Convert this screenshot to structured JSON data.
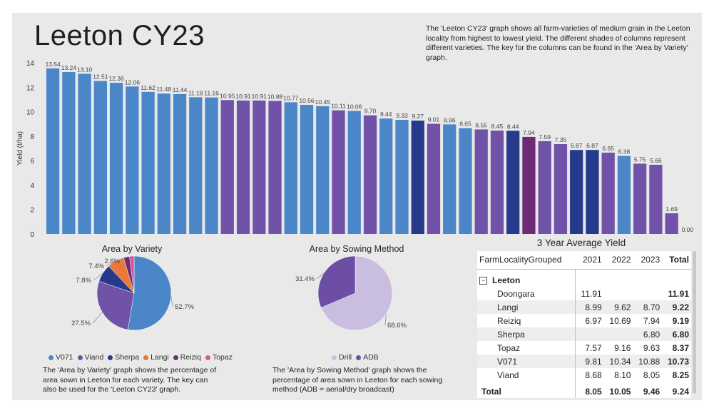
{
  "page_title": "Leeton CY23",
  "intro_text": "The 'Leeton CY23' graph shows all farm-varieties of medium grain in the Leeton locality from highest to lowest yield. The different shades of columns represent different varieties. The key for the columns can be found in the 'Area by Variety' graph.",
  "colors": {
    "V071": "#4a86c8",
    "Viand": "#7052a8",
    "Sherpa": "#263a8c",
    "Langi": "#e8793a",
    "Reiziq": "#6c2b74",
    "Topaz": "#d9559a",
    "Drill": "#c9bde0",
    "ADB": "#6c4fa5"
  },
  "chart_data": [
    {
      "type": "bar",
      "title": "Leeton CY23",
      "xlabel": "",
      "ylabel": "Yield (t/ha)",
      "ylim": [
        0,
        14
      ],
      "yticks": [
        0,
        2,
        4,
        6,
        8,
        10,
        12,
        14
      ],
      "values": [
        13.54,
        13.24,
        13.1,
        12.51,
        12.36,
        12.06,
        11.62,
        11.48,
        11.44,
        11.18,
        11.16,
        10.95,
        10.91,
        10.91,
        10.88,
        10.77,
        10.56,
        10.45,
        10.11,
        10.06,
        9.7,
        9.44,
        9.33,
        9.27,
        9.01,
        8.96,
        8.65,
        8.55,
        8.45,
        8.44,
        7.94,
        7.59,
        7.35,
        6.87,
        6.87,
        6.65,
        6.38,
        5.75,
        5.66,
        1.69,
        0.0
      ],
      "labels": [
        "13.54",
        "13.24",
        "13.10",
        "12.51",
        "12.36",
        "12.06",
        "11.62",
        "11.48",
        "11.44",
        "11.18",
        "11.16",
        "10.95",
        "10.91",
        "10.91",
        "10.88",
        "10.77",
        "10.56",
        "10.45",
        "10.11",
        "10.06",
        "9.70",
        "9.44",
        "9.33",
        "9.27",
        "9.01",
        "8.96",
        "8.65",
        "8.55",
        "8.45",
        "8.44",
        "7.94",
        "7.59",
        "7.35",
        "6.87",
        "6.87",
        "6.65",
        "6.38",
        "5.75",
        "5.66",
        "1.69",
        "0.00"
      ],
      "varieties": [
        "V071",
        "V071",
        "V071",
        "V071",
        "V071",
        "V071",
        "V071",
        "V071",
        "V071",
        "V071",
        "V071",
        "Viand",
        "Viand",
        "Viand",
        "Viand",
        "V071",
        "V071",
        "V071",
        "Viand",
        "V071",
        "Viand",
        "V071",
        "V071",
        "Sherpa",
        "Viand",
        "V071",
        "V071",
        "Viand",
        "Viand",
        "Sherpa",
        "Reiziq",
        "Viand",
        "Viand",
        "Sherpa",
        "Sherpa",
        "Viand",
        "V071",
        "Viand",
        "Viand",
        "Viand",
        "Viand"
      ]
    },
    {
      "type": "pie",
      "title": "Area by Variety",
      "categories": [
        "V071",
        "Viand",
        "Sherpa",
        "Langi",
        "Reiziq",
        "Topaz"
      ],
      "values": [
        52.7,
        27.5,
        7.8,
        7.4,
        2.6,
        2.0
      ],
      "labels": [
        "52.7%",
        "27.5%",
        "7.8%",
        "7.4%",
        "2.6%",
        ""
      ],
      "legend": [
        "V071",
        "Viand",
        "Sherpa",
        "Langi",
        "Reiziq",
        "Topaz"
      ]
    },
    {
      "type": "pie",
      "title": "Area by Sowing Method",
      "categories": [
        "Drill",
        "ADB"
      ],
      "values": [
        68.6,
        31.4
      ],
      "labels": [
        "68.6%",
        "31.4%"
      ],
      "legend": [
        "Drill",
        "ADB"
      ]
    }
  ],
  "captions": {
    "variety": "The 'Area by Variety' graph shows the percentage of area sown in Leeton for each variety. The key can also be used for the 'Leeton CY23' graph.",
    "sowing": "The 'Area by Sowing Method' graph shows the percentage of area sown in Leeton for each sowing method (ADB = aerial/dry broadcast)"
  },
  "table": {
    "title": "3 Year Average Yield",
    "headers": [
      "FarmLocalityGrouped",
      "2021",
      "2022",
      "2023",
      "Total"
    ],
    "group": "Leeton",
    "collapse_symbol": "−",
    "rows": [
      {
        "name": "Doongara",
        "y2021": "11.91",
        "y2022": "",
        "y2023": "",
        "total": "11.91"
      },
      {
        "name": "Langi",
        "y2021": "8.99",
        "y2022": "9.62",
        "y2023": "8.70",
        "total": "9.22"
      },
      {
        "name": "Reiziq",
        "y2021": "6.97",
        "y2022": "10.69",
        "y2023": "7.94",
        "total": "9.19"
      },
      {
        "name": "Sherpa",
        "y2021": "",
        "y2022": "",
        "y2023": "6.80",
        "total": "6.80"
      },
      {
        "name": "Topaz",
        "y2021": "7.57",
        "y2022": "9.16",
        "y2023": "9.63",
        "total": "8.37"
      },
      {
        "name": "V071",
        "y2021": "9.81",
        "y2022": "10.34",
        "y2023": "10.88",
        "total": "10.73"
      },
      {
        "name": "Viand",
        "y2021": "8.68",
        "y2022": "8.10",
        "y2023": "8.05",
        "total": "8.25"
      }
    ],
    "total_row": {
      "name": "Total",
      "y2021": "8.05",
      "y2022": "10.05",
      "y2023": "9.46",
      "total": "9.24"
    }
  }
}
